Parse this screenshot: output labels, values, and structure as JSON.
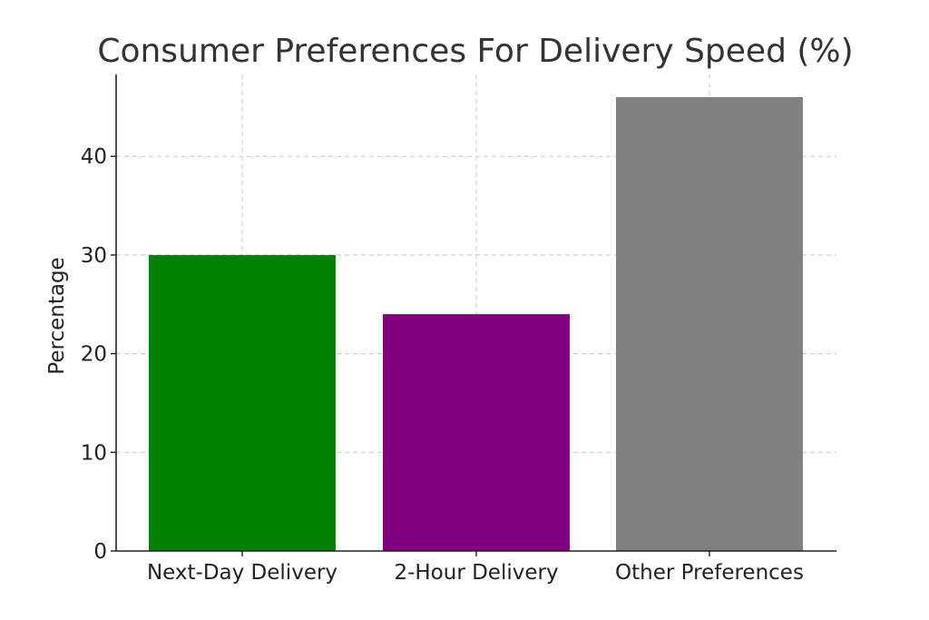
{
  "chart_data": {
    "type": "bar",
    "title": "Consumer Preferences For Delivery Speed (%)",
    "xlabel": "",
    "ylabel": "Percentage",
    "categories": [
      "Next-Day Delivery",
      "2-Hour Delivery",
      "Other Preferences"
    ],
    "values": [
      30,
      24,
      46
    ],
    "colors": [
      "#008000",
      "#800080",
      "#808080"
    ],
    "ylim": [
      0,
      48.3
    ],
    "yticks": [
      0,
      10,
      20,
      30,
      40
    ],
    "ytick_labels": [
      "0",
      "10",
      "20",
      "30",
      "40"
    ],
    "grid": true,
    "legend": "none"
  }
}
